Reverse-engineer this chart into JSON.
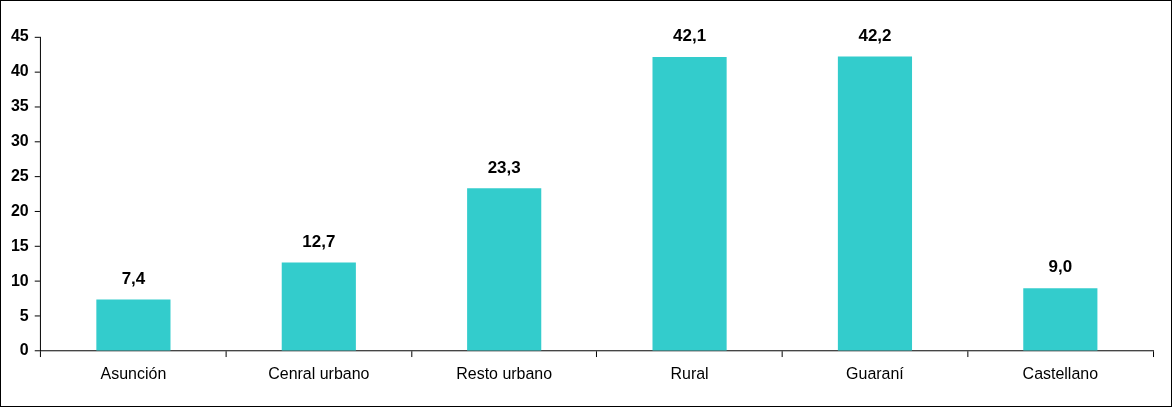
{
  "chart_data": {
    "type": "bar",
    "categories": [
      "Asunción",
      "Cenral urbano",
      "Resto urbano",
      "Rural",
      "Guaraní",
      "Castellano"
    ],
    "values": [
      7.4,
      12.7,
      23.3,
      42.1,
      42.2,
      9.0
    ],
    "value_labels": [
      "7,4",
      "12,7",
      "23,3",
      "42,1",
      "42,2",
      "9,0"
    ],
    "color": "#33cccc",
    "ylim": [
      0,
      45
    ],
    "yticks": [
      0,
      5,
      10,
      15,
      20,
      25,
      30,
      35,
      40,
      45
    ],
    "grid": false,
    "legend": false
  }
}
